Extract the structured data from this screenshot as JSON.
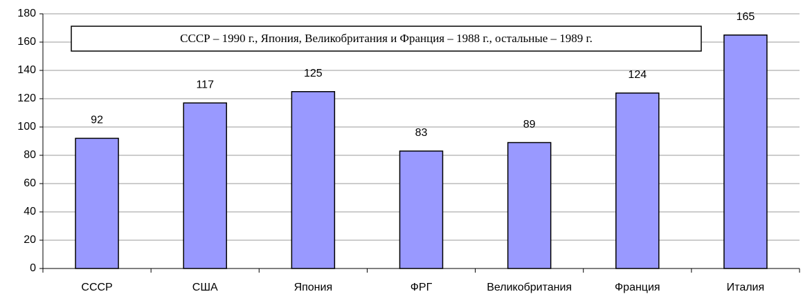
{
  "chart_data": {
    "type": "bar",
    "annotation": "СССР – 1990 г., Япония, Великобритания и Франция – 1988 г., остальные – 1989 г.",
    "categories": [
      "СССР",
      "США",
      "Япония",
      "ФРГ",
      "Великобритания",
      "Франция",
      "Италия"
    ],
    "values": [
      92,
      117,
      125,
      83,
      89,
      124,
      165
    ],
    "color": "#9999ff",
    "ylim": [
      0,
      180
    ],
    "yticks": [
      0,
      20,
      40,
      60,
      80,
      100,
      120,
      140,
      160,
      180
    ],
    "grid": true
  }
}
